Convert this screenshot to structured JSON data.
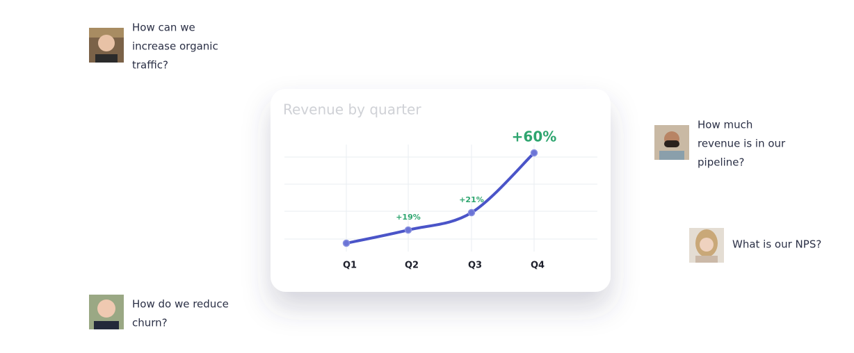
{
  "chart_data": {
    "type": "line",
    "title": "Revenue by quarter",
    "categories": [
      "Q1",
      "Q2",
      "Q3",
      "Q4"
    ],
    "values": [
      100,
      119,
      144,
      230
    ],
    "annotations": [
      null,
      "+19%",
      "+21%",
      "+60%"
    ],
    "color": "#4a54c8",
    "annotation_color": "#2ea56f",
    "ylim": [
      80,
      260
    ]
  },
  "questions": [
    {
      "lines": [
        "How can we",
        "increase organic",
        "traffic?"
      ]
    },
    {
      "lines": [
        "How much",
        "revenue is in our",
        "pipeline?"
      ]
    },
    {
      "lines": [
        "What is our NPS?"
      ]
    },
    {
      "lines": [
        "How do we reduce",
        "churn?"
      ]
    }
  ]
}
